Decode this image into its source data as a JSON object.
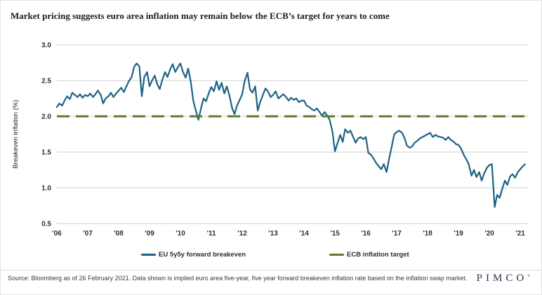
{
  "title": "Market pricing suggests euro area inflation may remain below the ECB’s target for years to come",
  "footer": {
    "source_text": "Source: Bloomberg as of 26 February 2021. Data shown is implied euro area five-year, five year forward breakeven inflation rate based on the inflation swap market.",
    "brand": "PIMCO",
    "brand_mark": "®"
  },
  "colors": {
    "series_line": "#1d6384",
    "target_line": "#5e7a2e",
    "grid": "#cccccc",
    "tick_text": "#2e2e2e"
  },
  "chart_data": {
    "type": "line",
    "title": "Market pricing suggests euro area inflation may remain below the ECB’s target for years to come",
    "xlabel": "",
    "ylabel": "Breakeven inflation (%)",
    "ylim": [
      0.5,
      3.0
    ],
    "yticks": [
      0.5,
      1.0,
      1.5,
      2.0,
      2.5,
      3.0
    ],
    "xlim": [
      2006,
      2021.27
    ],
    "xticks": [
      2006,
      2007,
      2008,
      2009,
      2010,
      2011,
      2012,
      2013,
      2014,
      2015,
      2016,
      2017,
      2018,
      2019,
      2020,
      2021
    ],
    "xtick_labels": [
      "'06",
      "'07",
      "'08",
      "'09",
      "'10",
      "'11",
      "'12",
      "'13",
      "'14",
      "'15",
      "'16",
      "'17",
      "'18",
      "'19",
      "'20",
      "'21"
    ],
    "grid": "horizontal",
    "legend_position": "bottom",
    "series": [
      {
        "name": "EU 5y5y forward breakeven",
        "kind": "line",
        "color": "#1d6384",
        "points": [
          [
            2006.0,
            2.13
          ],
          [
            2006.08,
            2.18
          ],
          [
            2006.17,
            2.15
          ],
          [
            2006.25,
            2.22
          ],
          [
            2006.33,
            2.28
          ],
          [
            2006.42,
            2.24
          ],
          [
            2006.5,
            2.33
          ],
          [
            2006.58,
            2.3
          ],
          [
            2006.67,
            2.27
          ],
          [
            2006.75,
            2.31
          ],
          [
            2006.83,
            2.26
          ],
          [
            2006.92,
            2.3
          ],
          [
            2007.0,
            2.28
          ],
          [
            2007.08,
            2.32
          ],
          [
            2007.17,
            2.27
          ],
          [
            2007.25,
            2.31
          ],
          [
            2007.33,
            2.36
          ],
          [
            2007.42,
            2.3
          ],
          [
            2007.5,
            2.18
          ],
          [
            2007.58,
            2.25
          ],
          [
            2007.67,
            2.28
          ],
          [
            2007.75,
            2.33
          ],
          [
            2007.83,
            2.27
          ],
          [
            2007.92,
            2.32
          ],
          [
            2008.0,
            2.36
          ],
          [
            2008.08,
            2.4
          ],
          [
            2008.17,
            2.34
          ],
          [
            2008.25,
            2.42
          ],
          [
            2008.33,
            2.49
          ],
          [
            2008.42,
            2.55
          ],
          [
            2008.5,
            2.69
          ],
          [
            2008.58,
            2.74
          ],
          [
            2008.67,
            2.7
          ],
          [
            2008.75,
            2.28
          ],
          [
            2008.83,
            2.55
          ],
          [
            2008.92,
            2.62
          ],
          [
            2009.0,
            2.42
          ],
          [
            2009.08,
            2.5
          ],
          [
            2009.17,
            2.57
          ],
          [
            2009.25,
            2.45
          ],
          [
            2009.33,
            2.38
          ],
          [
            2009.42,
            2.52
          ],
          [
            2009.5,
            2.62
          ],
          [
            2009.58,
            2.55
          ],
          [
            2009.67,
            2.66
          ],
          [
            2009.75,
            2.73
          ],
          [
            2009.83,
            2.62
          ],
          [
            2009.92,
            2.69
          ],
          [
            2010.0,
            2.74
          ],
          [
            2010.08,
            2.62
          ],
          [
            2010.17,
            2.54
          ],
          [
            2010.25,
            2.67
          ],
          [
            2010.33,
            2.49
          ],
          [
            2010.42,
            2.21
          ],
          [
            2010.5,
            2.08
          ],
          [
            2010.58,
            1.95
          ],
          [
            2010.67,
            2.12
          ],
          [
            2010.75,
            2.25
          ],
          [
            2010.83,
            2.21
          ],
          [
            2010.92,
            2.33
          ],
          [
            2011.0,
            2.41
          ],
          [
            2011.08,
            2.35
          ],
          [
            2011.17,
            2.49
          ],
          [
            2011.25,
            2.37
          ],
          [
            2011.33,
            2.47
          ],
          [
            2011.42,
            2.32
          ],
          [
            2011.5,
            2.42
          ],
          [
            2011.58,
            2.3
          ],
          [
            2011.67,
            2.12
          ],
          [
            2011.75,
            2.03
          ],
          [
            2011.83,
            2.15
          ],
          [
            2011.92,
            2.23
          ],
          [
            2012.0,
            2.31
          ],
          [
            2012.08,
            2.5
          ],
          [
            2012.17,
            2.61
          ],
          [
            2012.25,
            2.38
          ],
          [
            2012.33,
            2.33
          ],
          [
            2012.42,
            2.42
          ],
          [
            2012.5,
            2.08
          ],
          [
            2012.58,
            2.2
          ],
          [
            2012.67,
            2.3
          ],
          [
            2012.75,
            2.39
          ],
          [
            2012.83,
            2.35
          ],
          [
            2012.92,
            2.27
          ],
          [
            2013.0,
            2.3
          ],
          [
            2013.08,
            2.35
          ],
          [
            2013.17,
            2.25
          ],
          [
            2013.25,
            2.28
          ],
          [
            2013.33,
            2.31
          ],
          [
            2013.42,
            2.27
          ],
          [
            2013.5,
            2.22
          ],
          [
            2013.58,
            2.26
          ],
          [
            2013.67,
            2.23
          ],
          [
            2013.75,
            2.25
          ],
          [
            2013.83,
            2.2
          ],
          [
            2013.92,
            2.22
          ],
          [
            2014.0,
            2.22
          ],
          [
            2014.08,
            2.15
          ],
          [
            2014.17,
            2.13
          ],
          [
            2014.25,
            2.1
          ],
          [
            2014.33,
            2.08
          ],
          [
            2014.42,
            2.11
          ],
          [
            2014.5,
            2.06
          ],
          [
            2014.58,
            2.01
          ],
          [
            2014.67,
            2.06
          ],
          [
            2014.75,
            2.01
          ],
          [
            2014.83,
            1.95
          ],
          [
            2014.92,
            1.78
          ],
          [
            2015.0,
            1.51
          ],
          [
            2015.08,
            1.62
          ],
          [
            2015.17,
            1.74
          ],
          [
            2015.25,
            1.64
          ],
          [
            2015.33,
            1.82
          ],
          [
            2015.42,
            1.77
          ],
          [
            2015.5,
            1.8
          ],
          [
            2015.58,
            1.72
          ],
          [
            2015.67,
            1.63
          ],
          [
            2015.75,
            1.69
          ],
          [
            2015.83,
            1.71
          ],
          [
            2015.92,
            1.68
          ],
          [
            2016.0,
            1.71
          ],
          [
            2016.08,
            1.49
          ],
          [
            2016.17,
            1.46
          ],
          [
            2016.25,
            1.41
          ],
          [
            2016.33,
            1.35
          ],
          [
            2016.42,
            1.3
          ],
          [
            2016.5,
            1.26
          ],
          [
            2016.58,
            1.33
          ],
          [
            2016.67,
            1.22
          ],
          [
            2016.75,
            1.4
          ],
          [
            2016.83,
            1.56
          ],
          [
            2016.92,
            1.75
          ],
          [
            2017.0,
            1.78
          ],
          [
            2017.08,
            1.8
          ],
          [
            2017.17,
            1.77
          ],
          [
            2017.25,
            1.7
          ],
          [
            2017.33,
            1.59
          ],
          [
            2017.42,
            1.56
          ],
          [
            2017.5,
            1.58
          ],
          [
            2017.58,
            1.63
          ],
          [
            2017.67,
            1.66
          ],
          [
            2017.75,
            1.69
          ],
          [
            2017.83,
            1.71
          ],
          [
            2017.92,
            1.73
          ],
          [
            2018.0,
            1.75
          ],
          [
            2018.08,
            1.77
          ],
          [
            2018.17,
            1.71
          ],
          [
            2018.25,
            1.74
          ],
          [
            2018.33,
            1.72
          ],
          [
            2018.42,
            1.71
          ],
          [
            2018.5,
            1.7
          ],
          [
            2018.58,
            1.67
          ],
          [
            2018.67,
            1.71
          ],
          [
            2018.75,
            1.67
          ],
          [
            2018.83,
            1.65
          ],
          [
            2018.92,
            1.61
          ],
          [
            2019.0,
            1.6
          ],
          [
            2019.08,
            1.55
          ],
          [
            2019.17,
            1.46
          ],
          [
            2019.25,
            1.4
          ],
          [
            2019.33,
            1.33
          ],
          [
            2019.42,
            1.17
          ],
          [
            2019.5,
            1.25
          ],
          [
            2019.58,
            1.15
          ],
          [
            2019.67,
            1.22
          ],
          [
            2019.75,
            1.1
          ],
          [
            2019.83,
            1.2
          ],
          [
            2019.92,
            1.28
          ],
          [
            2020.0,
            1.32
          ],
          [
            2020.08,
            1.33
          ],
          [
            2020.17,
            0.73
          ],
          [
            2020.25,
            0.9
          ],
          [
            2020.33,
            0.86
          ],
          [
            2020.42,
            0.99
          ],
          [
            2020.5,
            1.1
          ],
          [
            2020.58,
            1.04
          ],
          [
            2020.67,
            1.16
          ],
          [
            2020.75,
            1.19
          ],
          [
            2020.83,
            1.14
          ],
          [
            2020.92,
            1.22
          ],
          [
            2021.0,
            1.26
          ],
          [
            2021.08,
            1.3
          ],
          [
            2021.15,
            1.33
          ]
        ]
      },
      {
        "name": "ECB inflation target",
        "kind": "dashed-hline",
        "color": "#5e7a2e",
        "value": 2.0
      }
    ]
  }
}
